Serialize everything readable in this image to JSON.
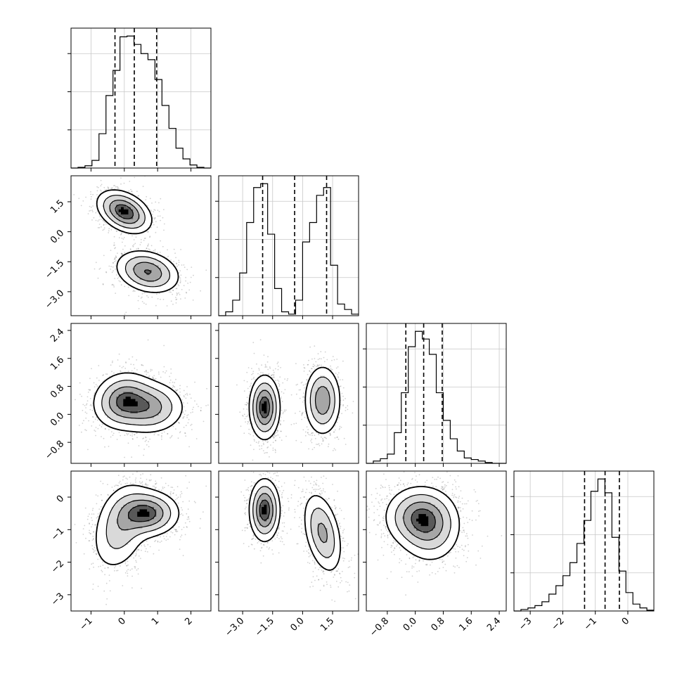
{
  "chart_data": {
    "type": "corner",
    "n_params": 4,
    "grid": true,
    "params": [
      {
        "range": [
          -1.6,
          2.6
        ],
        "ticks": [
          -1,
          0,
          1,
          2
        ],
        "tick_labels": [
          "−1",
          "0",
          "1",
          "2"
        ],
        "quantiles": [
          -0.28,
          0.3,
          0.97
        ],
        "hist": [
          0,
          1,
          3,
          10,
          45,
          95,
          128,
          172,
          173,
          162,
          150,
          142,
          116,
          82,
          52,
          26,
          12,
          4,
          1,
          0
        ]
      },
      {
        "range": [
          -4.2,
          2.8
        ],
        "ticks": [
          -3.0,
          -1.5,
          0.0,
          1.5
        ],
        "tick_labels": [
          "−3.0",
          "−1.5",
          "0.0",
          "1.5"
        ],
        "quantiles": [
          -2.0,
          -0.4,
          1.2
        ],
        "hist": [
          0,
          5,
          20,
          55,
          120,
          165,
          170,
          105,
          35,
          5,
          2,
          20,
          95,
          120,
          155,
          165,
          65,
          15,
          8,
          2
        ]
      },
      {
        "range": [
          -1.4,
          2.6
        ],
        "ticks": [
          -0.8,
          0.0,
          0.8,
          1.6,
          2.4
        ],
        "tick_labels": [
          "−0.8",
          "0.0",
          "0.8",
          "1.6",
          "2.4"
        ],
        "quantiles": [
          -0.27,
          0.24,
          0.77
        ],
        "hist": [
          0,
          3,
          6,
          12,
          40,
          92,
          152,
          172,
          162,
          142,
          92,
          56,
          32,
          16,
          7,
          5,
          3,
          1,
          0,
          0
        ]
      },
      {
        "range": [
          -3.5,
          0.8
        ],
        "ticks": [
          -3,
          -2,
          -1,
          0
        ],
        "tick_labels": [
          "−3",
          "−2",
          "−1",
          "0"
        ],
        "quantiles": [
          -1.33,
          -0.7,
          -0.26
        ],
        "hist": [
          0,
          2,
          4,
          7,
          12,
          22,
          33,
          46,
          63,
          88,
          118,
          156,
          172,
          154,
          96,
          52,
          24,
          9,
          4,
          1
        ]
      }
    ],
    "pairs": [
      {
        "x_param": 0,
        "y_param": 1,
        "modes": [
          {
            "mean": [
              0.0,
              1.0
            ],
            "cov": [
              [
                0.16,
                -0.08
              ],
              [
                -0.08,
                0.28
              ]
            ],
            "weight": 0.5
          },
          {
            "mean": [
              0.7,
              -2.0
            ],
            "cov": [
              [
                0.22,
                -0.06
              ],
              [
                -0.06,
                0.28
              ]
            ],
            "weight": 0.5
          }
        ]
      },
      {
        "x_param": 0,
        "y_param": 2,
        "modes": [
          {
            "mean": [
              -0.05,
              0.4
            ],
            "cov": [
              [
                0.2,
                0.02
              ],
              [
                0.02,
                0.16
              ]
            ],
            "weight": 0.5
          },
          {
            "mean": [
              0.75,
              0.2
            ],
            "cov": [
              [
                0.28,
                0.0
              ],
              [
                0.0,
                0.14
              ]
            ],
            "weight": 0.5
          }
        ]
      },
      {
        "x_param": 0,
        "y_param": 3,
        "modes": [
          {
            "mean": [
              -0.1,
              -0.9
            ],
            "cov": [
              [
                0.2,
                0.1
              ],
              [
                0.1,
                0.5
              ]
            ],
            "weight": 0.5
          },
          {
            "mean": [
              0.7,
              -0.5
            ],
            "cov": [
              [
                0.22,
                0.0
              ],
              [
                0.0,
                0.12
              ]
            ],
            "weight": 0.5
          }
        ]
      },
      {
        "x_param": 1,
        "y_param": 2,
        "modes": [
          {
            "mean": [
              -1.9,
              0.2
            ],
            "cov": [
              [
                0.14,
                0.0
              ],
              [
                0.0,
                0.2
              ]
            ],
            "weight": 0.5
          },
          {
            "mean": [
              1.0,
              0.4
            ],
            "cov": [
              [
                0.2,
                0.0
              ],
              [
                0.0,
                0.24
              ]
            ],
            "weight": 0.5
          }
        ]
      },
      {
        "x_param": 1,
        "y_param": 3,
        "modes": [
          {
            "mean": [
              -1.9,
              -0.4
            ],
            "cov": [
              [
                0.14,
                0.0
              ],
              [
                0.0,
                0.22
              ]
            ],
            "weight": 0.5
          },
          {
            "mean": [
              1.0,
              -1.1
            ],
            "cov": [
              [
                0.24,
                -0.12
              ],
              [
                -0.12,
                0.4
              ]
            ],
            "weight": 0.5
          }
        ]
      },
      {
        "x_param": 2,
        "y_param": 3,
        "modes": [
          {
            "mean": [
              0.1,
              -0.6
            ],
            "cov": [
              [
                0.24,
                0.0
              ],
              [
                0.0,
                0.22
              ]
            ],
            "weight": 0.6
          },
          {
            "mean": [
              0.45,
              -1.0
            ],
            "cov": [
              [
                0.2,
                0.0
              ],
              [
                0.0,
                0.3
              ]
            ],
            "weight": 0.4
          }
        ]
      }
    ]
  }
}
